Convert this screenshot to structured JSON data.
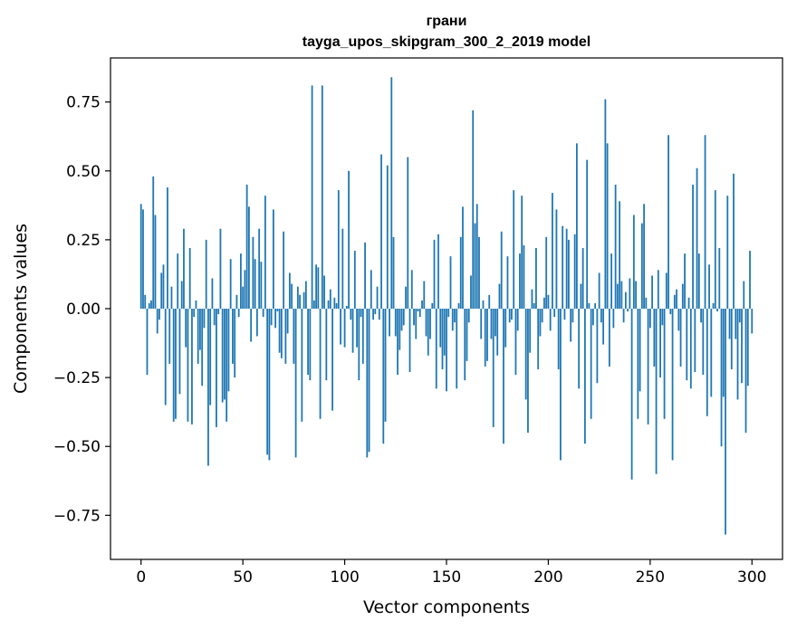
{
  "chart_data": {
    "type": "bar",
    "title": "грани",
    "subtitle": "tayga_upos_skipgram_300_2_2019 model",
    "xlabel": "Vector components",
    "ylabel": "Components values",
    "xlim": [
      -15,
      315
    ],
    "ylim": [
      -0.91,
      0.91
    ],
    "xticks": [
      0,
      50,
      100,
      150,
      200,
      250,
      300
    ],
    "yticks": [
      -0.75,
      -0.5,
      -0.25,
      0.0,
      0.25,
      0.5,
      0.75
    ],
    "ytick_labels": [
      "−0.75",
      "−0.50",
      "−0.25",
      "0.00",
      "0.25",
      "0.50",
      "0.75"
    ],
    "bar_color": "#1f77b4",
    "values": [
      0.38,
      0.36,
      0.05,
      -0.24,
      0.02,
      0.03,
      0.48,
      0.34,
      -0.09,
      -0.04,
      0.13,
      0.16,
      -0.35,
      0.44,
      -0.2,
      0.08,
      -0.41,
      -0.4,
      0.2,
      -0.31,
      0.1,
      0.29,
      -0.14,
      -0.41,
      0.22,
      -0.42,
      -0.03,
      0.03,
      -0.2,
      -0.15,
      -0.28,
      -0.07,
      0.25,
      -0.57,
      -0.35,
      0.11,
      -0.06,
      -0.43,
      -0.02,
      0.29,
      -0.34,
      -0.33,
      -0.41,
      -0.3,
      0.18,
      -0.2,
      -0.25,
      0.05,
      -0.03,
      0.2,
      0.08,
      0.14,
      0.45,
      0.37,
      -0.12,
      0.26,
      0.18,
      -0.1,
      0.29,
      0.17,
      -0.03,
      0.41,
      -0.53,
      -0.55,
      -0.06,
      0.36,
      -0.07,
      -0.01,
      -0.16,
      -0.18,
      0.28,
      -0.2,
      -0.09,
      0.13,
      0.09,
      -0.2,
      -0.54,
      0.08,
      0.05,
      -0.41,
      0.06,
      0.1,
      -0.24,
      -0.26,
      0.81,
      0.03,
      0.16,
      0.15,
      -0.4,
      0.81,
      0.12,
      -0.26,
      0.03,
      0.07,
      -0.37,
      0.04,
      0.02,
      0.43,
      -0.13,
      0.29,
      -0.14,
      0.01,
      0.5,
      -0.04,
      -0.16,
      0.21,
      -0.14,
      -0.26,
      -0.03,
      -0.2,
      0.24,
      -0.54,
      -0.52,
      0.14,
      -0.04,
      -0.02,
      0.08,
      -0.04,
      0.56,
      -0.49,
      -0.41,
      0.52,
      -0.1,
      0.84,
      0.26,
      -0.1,
      -0.24,
      -0.15,
      -0.08,
      -0.06,
      0.08,
      0.55,
      -0.23,
      0.14,
      -0.06,
      -0.11,
      -0.01,
      -0.03,
      0.03,
      0.1,
      -0.1,
      -0.17,
      -0.11,
      0.02,
      0.25,
      -0.29,
      0.27,
      -0.14,
      -0.22,
      -0.17,
      -0.3,
      -0.03,
      0.19,
      -0.08,
      -0.05,
      -0.29,
      0.02,
      0.26,
      0.37,
      -0.26,
      -0.19,
      -0.05,
      0.12,
      0.72,
      0.31,
      0.38,
      0.26,
      -0.11,
      0.03,
      -0.21,
      -0.19,
      0.05,
      -0.11,
      -0.43,
      -0.1,
      -0.17,
      0.09,
      0.28,
      -0.49,
      -0.14,
      0.19,
      -0.05,
      -0.04,
      0.43,
      -0.24,
      -0.08,
      0.2,
      0.41,
      0.23,
      -0.33,
      -0.45,
      -0.16,
      0.07,
      0.02,
      0.22,
      -0.22,
      -0.1,
      -0.05,
      0.04,
      0.26,
      0.05,
      -0.08,
      0.42,
      -0.03,
      0.36,
      -0.22,
      -0.55,
      0.3,
      -0.04,
      0.29,
      0.25,
      -0.12,
      -0.05,
      0.27,
      0.6,
      -0.29,
      0.09,
      0.22,
      -0.49,
      0.54,
      0.02,
      -0.4,
      -0.06,
      0.02,
      -0.27,
      0.13,
      -0.05,
      -0.13,
      0.76,
      0.6,
      -0.21,
      0.2,
      -0.07,
      0.45,
      0.09,
      0.39,
      0.1,
      -0.05,
      0.06,
      -0.01,
      0.11,
      -0.62,
      0.34,
      0.1,
      -0.4,
      -0.3,
      0.31,
      0.38,
      0.04,
      -0.42,
      -0.07,
      0.12,
      -0.21,
      -0.6,
      0.14,
      -0.25,
      -0.06,
      -0.4,
      0.13,
      0.63,
      -0.02,
      -0.55,
      0.05,
      0.07,
      -0.08,
      -0.21,
      0.09,
      0.2,
      -0.26,
      0.04,
      -0.29,
      0.45,
      -0.23,
      0.51,
      0.2,
      -0.05,
      -0.24,
      0.63,
      -0.39,
      0.16,
      -0.32,
      0.02,
      0.43,
      -0.01,
      0.22,
      -0.5,
      -0.32,
      -0.82,
      0.41,
      -0.11,
      -0.22,
      0.49,
      -0.11,
      -0.33,
      -0.05,
      -0.27,
      0.1,
      -0.45,
      -0.28,
      0.21,
      -0.09
    ]
  }
}
